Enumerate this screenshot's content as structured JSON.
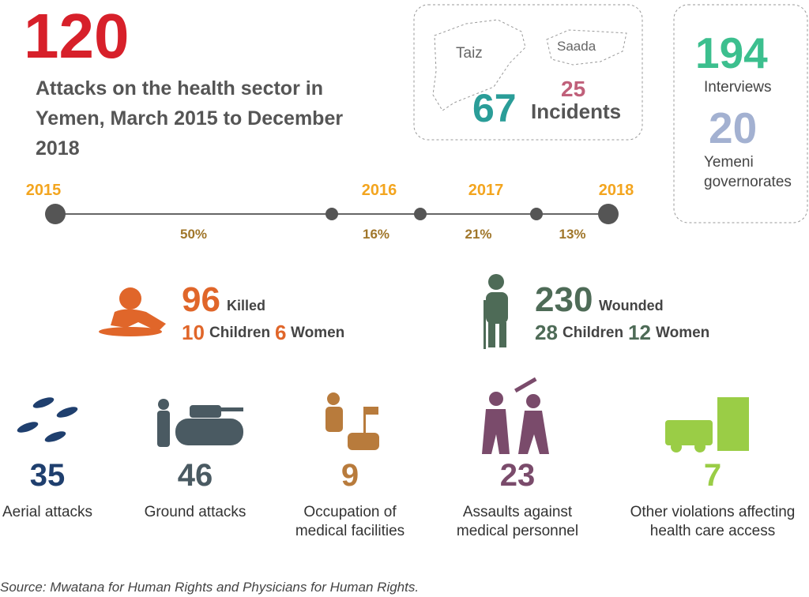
{
  "header": {
    "number": "120",
    "title": "Attacks on the health sector in Yemen, March 2015 to December 2018"
  },
  "map": {
    "regions": [
      {
        "name": "Taiz",
        "incidents": "67"
      },
      {
        "name": "Saada",
        "incidents": "25"
      }
    ],
    "incidents_label": "Incidents"
  },
  "stats": [
    {
      "value": "194",
      "label": "Interviews"
    },
    {
      "value": "20",
      "label": "Yemeni governorates"
    }
  ],
  "timeline": {
    "years": [
      "2015",
      "2016",
      "2017",
      "2018"
    ],
    "segments": [
      {
        "value": 50,
        "label": "50%"
      },
      {
        "value": 16,
        "label": "16%"
      },
      {
        "value": 21,
        "label": "21%"
      },
      {
        "value": 13,
        "label": "13%"
      }
    ]
  },
  "casualties": [
    {
      "total": "96",
      "label": "Killed",
      "children": "10",
      "children_label": "Children",
      "women": "6",
      "women_label": "Women",
      "color": "#e0662a"
    },
    {
      "total": "230",
      "label": "Wounded",
      "children": "28",
      "children_label": "Children",
      "women": "12",
      "women_label": "Women",
      "color": "#4e6b57"
    }
  ],
  "attack_types": [
    {
      "count": "35",
      "label": "Aerial attacks",
      "color": "#1f3f6e"
    },
    {
      "count": "46",
      "label": "Ground attacks",
      "color": "#4a5a62"
    },
    {
      "count": "9",
      "label": "Occupation of medical facilities",
      "color": "#b87b3c"
    },
    {
      "count": "23",
      "label": "Assaults against medical personnel",
      "color": "#7a4b6b"
    },
    {
      "count": "7",
      "label": "Other violations affecting health care access",
      "color": "#9acd46"
    }
  ],
  "source": "Source: Mwatana for Human Rights and Physicians for Human Rights."
}
